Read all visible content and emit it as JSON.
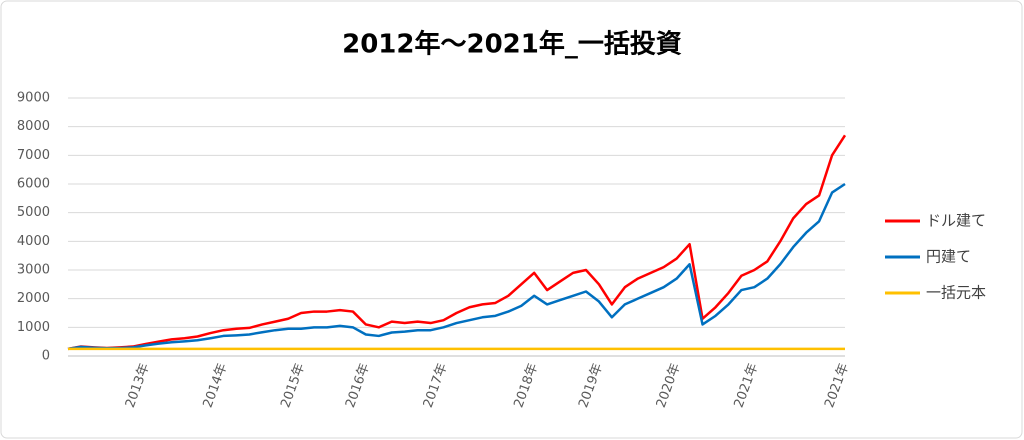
{
  "chart_data": {
    "type": "line",
    "title": "2012年～2021年_一括投資",
    "categories": [
      null,
      null,
      null,
      null,
      null,
      null,
      "2013年",
      null,
      null,
      null,
      null,
      null,
      "2014年",
      null,
      null,
      null,
      null,
      null,
      "2015年",
      null,
      null,
      null,
      null,
      "2016年",
      null,
      null,
      null,
      null,
      null,
      "2017年",
      null,
      null,
      null,
      null,
      null,
      null,
      "2018年",
      null,
      null,
      null,
      null,
      "2019年",
      null,
      null,
      null,
      null,
      null,
      "2020年",
      null,
      null,
      null,
      null,
      null,
      "2021年",
      null,
      null,
      null,
      null,
      null,
      null,
      "2021年"
    ],
    "series": [
      {
        "name": "ドル建て",
        "color": "#ff0000",
        "values": [
          250,
          330,
          300,
          280,
          300,
          330,
          420,
          500,
          580,
          620,
          680,
          800,
          900,
          950,
          980,
          1100,
          1200,
          1300,
          1500,
          1550,
          1550,
          1600,
          1550,
          1100,
          1000,
          1200,
          1150,
          1200,
          1150,
          1250,
          1500,
          1700,
          1800,
          1850,
          2100,
          2500,
          2900,
          2300,
          2600,
          2900,
          3000,
          2500,
          1800,
          2400,
          2700,
          2900,
          3100,
          3400,
          3900,
          1300,
          1700,
          2200,
          2800,
          3000,
          3300,
          4000,
          4800,
          5300,
          5600,
          7000,
          7700
        ]
      },
      {
        "name": "円建て",
        "color": "#0070c0",
        "values": [
          250,
          320,
          290,
          270,
          280,
          300,
          370,
          430,
          480,
          510,
          550,
          620,
          700,
          720,
          750,
          830,
          900,
          950,
          950,
          1000,
          1000,
          1050,
          1000,
          750,
          700,
          820,
          850,
          900,
          900,
          1000,
          1150,
          1250,
          1350,
          1400,
          1550,
          1750,
          2100,
          1800,
          1950,
          2100,
          2250,
          1900,
          1350,
          1800,
          2000,
          2200,
          2400,
          2700,
          3200,
          1100,
          1400,
          1800,
          2300,
          2400,
          2700,
          3200,
          3800,
          4300,
          4700,
          5700,
          6000
        ]
      },
      {
        "name": "一括元本",
        "color": "#ffc000",
        "values": [
          250,
          250,
          250,
          250,
          250,
          250,
          250,
          250,
          250,
          250,
          250,
          250,
          250,
          250,
          250,
          250,
          250,
          250,
          250,
          250,
          250,
          250,
          250,
          250,
          250,
          250,
          250,
          250,
          250,
          250,
          250,
          250,
          250,
          250,
          250,
          250,
          250,
          250,
          250,
          250,
          250,
          250,
          250,
          250,
          250,
          250,
          250,
          250,
          250,
          250,
          250,
          250,
          250,
          250,
          250,
          250,
          250,
          250,
          250,
          250,
          250
        ]
      }
    ],
    "ylim": [
      0,
      9000
    ],
    "yticks": [
      0,
      1000,
      2000,
      3000,
      4000,
      5000,
      6000,
      7000,
      8000,
      9000
    ],
    "grid": true,
    "legend": "right"
  }
}
